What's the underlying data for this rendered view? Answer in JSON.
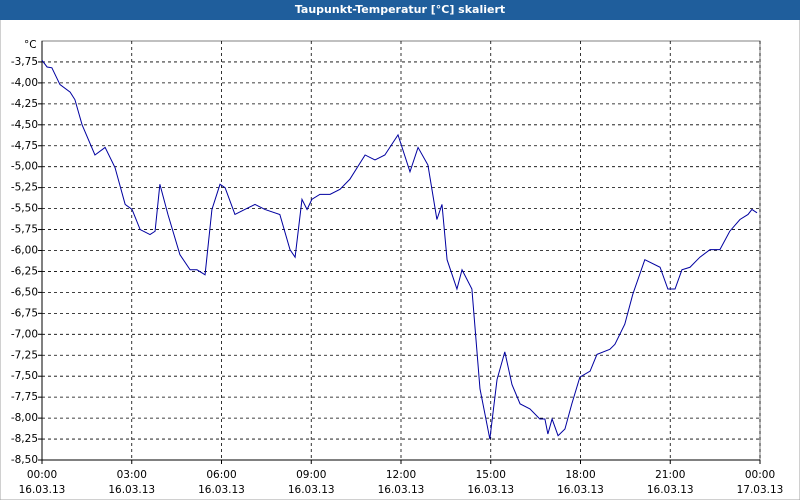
{
  "chart_data": {
    "type": "line",
    "title": "Taupunkt-Temperatur [°C] skaliert",
    "y_unit": "°C",
    "xlim": [
      0,
      24
    ],
    "xticks": [
      {
        "value": 0,
        "label": "00:00",
        "date": "16.03.13"
      },
      {
        "value": 3,
        "label": "03:00",
        "date": "16.03.13"
      },
      {
        "value": 6,
        "label": "06:00",
        "date": "16.03.13"
      },
      {
        "value": 9,
        "label": "09:00",
        "date": "16.03.13"
      },
      {
        "value": 12,
        "label": "12:00",
        "date": "16.03.13"
      },
      {
        "value": 15,
        "label": "15:00",
        "date": "16.03.13"
      },
      {
        "value": 18,
        "label": "18:00",
        "date": "16.03.13"
      },
      {
        "value": 21,
        "label": "21:00",
        "date": "16.03.13"
      },
      {
        "value": 24,
        "label": "00:00",
        "date": "17.03.13"
      }
    ],
    "ylim": [
      -8.5,
      -3.5
    ],
    "yticks": [
      {
        "value": -3.75,
        "label": "-3,75"
      },
      {
        "value": -4,
        "label": "-4,00"
      },
      {
        "value": -4.25,
        "label": "-4,25"
      },
      {
        "value": -4.5,
        "label": "-4,50"
      },
      {
        "value": -4.75,
        "label": "-4,75"
      },
      {
        "value": -5,
        "label": "-5,00"
      },
      {
        "value": -5.25,
        "label": "-5,25"
      },
      {
        "value": -5.5,
        "label": "-5,50"
      },
      {
        "value": -5.75,
        "label": "-5,75"
      },
      {
        "value": -6,
        "label": "-6,00"
      },
      {
        "value": -6.25,
        "label": "-6,25"
      },
      {
        "value": -6.5,
        "label": "-6,50"
      },
      {
        "value": -6.75,
        "label": "-6,75"
      },
      {
        "value": -7,
        "label": "-7,00"
      },
      {
        "value": -7.25,
        "label": "-7,25"
      },
      {
        "value": -7.5,
        "label": "-7,50"
      },
      {
        "value": -7.75,
        "label": "-7,75"
      },
      {
        "value": -8,
        "label": "-8,00"
      },
      {
        "value": -8.25,
        "label": "-8,25"
      },
      {
        "value": -8.5,
        "label": "-8,50"
      }
    ],
    "grid": true,
    "color": "#0000a0",
    "x": [
      0.0,
      0.17,
      0.33,
      0.6,
      0.94,
      1.1,
      1.34,
      1.77,
      2.11,
      2.44,
      2.78,
      3.01,
      3.28,
      3.61,
      3.78,
      3.94,
      4.21,
      4.61,
      4.95,
      5.18,
      5.45,
      5.68,
      5.95,
      6.12,
      6.45,
      6.78,
      7.12,
      7.45,
      7.95,
      8.29,
      8.46,
      8.69,
      8.86,
      9.02,
      9.29,
      9.63,
      9.96,
      10.29,
      10.8,
      11.13,
      11.46,
      11.9,
      12.3,
      12.57,
      12.9,
      13.2,
      13.37,
      13.54,
      13.87,
      14.04,
      14.37,
      14.64,
      14.97,
      15.21,
      15.47,
      15.71,
      15.98,
      16.31,
      16.64,
      16.81,
      16.91,
      17.05,
      17.25,
      17.48,
      17.71,
      17.98,
      18.32,
      18.55,
      18.98,
      19.15,
      19.48,
      19.75,
      20.15,
      20.66,
      20.92,
      21.16,
      21.39,
      21.66,
      21.99,
      22.33,
      22.66,
      22.99,
      23.33,
      23.6,
      23.73,
      23.9
    ],
    "values": [
      -3.73,
      -3.81,
      -3.82,
      -4.02,
      -4.11,
      -4.2,
      -4.5,
      -4.86,
      -4.77,
      -5.01,
      -5.45,
      -5.51,
      -5.75,
      -5.81,
      -5.77,
      -5.21,
      -5.57,
      -6.05,
      -6.23,
      -6.23,
      -6.29,
      -5.51,
      -5.21,
      -5.25,
      -5.57,
      -5.51,
      -5.45,
      -5.51,
      -5.57,
      -5.99,
      -6.08,
      -5.39,
      -5.51,
      -5.39,
      -5.33,
      -5.33,
      -5.27,
      -5.15,
      -4.86,
      -4.92,
      -4.86,
      -4.62,
      -5.06,
      -4.77,
      -4.98,
      -5.63,
      -5.45,
      -6.11,
      -6.46,
      -6.23,
      -6.46,
      -7.65,
      -8.25,
      -7.54,
      -7.21,
      -7.6,
      -7.83,
      -7.89,
      -8.01,
      -8.01,
      -8.19,
      -8.01,
      -8.21,
      -8.13,
      -7.83,
      -7.51,
      -7.44,
      -7.24,
      -7.18,
      -7.12,
      -6.88,
      -6.52,
      -6.11,
      -6.2,
      -6.46,
      -6.46,
      -6.23,
      -6.2,
      -6.08,
      -5.99,
      -5.99,
      -5.77,
      -5.63,
      -5.57,
      -5.51,
      -5.55
    ]
  }
}
